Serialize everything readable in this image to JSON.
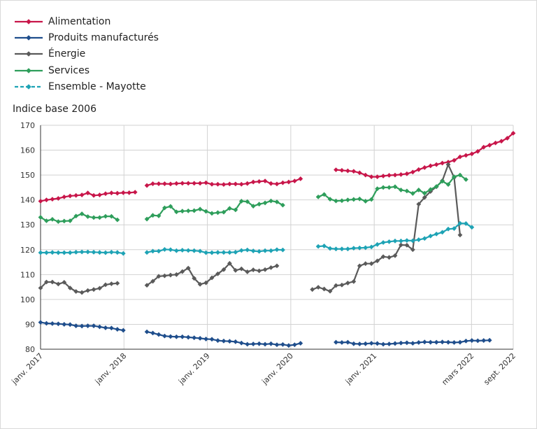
{
  "chart_data": {
    "type": "line",
    "ylabel": "Indice base 2006",
    "ylim": [
      80,
      170
    ],
    "yticks": [
      80,
      90,
      100,
      110,
      120,
      130,
      140,
      150,
      160,
      170
    ],
    "xticks": [
      {
        "label": "janv. 2017",
        "m": 0
      },
      {
        "label": "janv. 2018",
        "m": 12
      },
      {
        "label": "janv. 2019",
        "m": 24
      },
      {
        "label": "janv. 2020",
        "m": 36
      },
      {
        "label": "janv. 2021",
        "m": 48
      },
      {
        "label": "mars 2022",
        "m": 62
      },
      {
        "label": "sept. 2022",
        "m": 68
      }
    ],
    "x_start": "janv. 2017",
    "x_end": "sept. 2022",
    "grid": true,
    "legend_position": "top-left",
    "series": [
      {
        "name": "Alimentation",
        "color": "#c8164a",
        "dashed": false,
        "values": [
          139.5,
          140.0,
          140.3,
          140.6,
          141.2,
          141.6,
          141.8,
          142.0,
          142.8,
          141.8,
          142.0,
          142.5,
          142.8,
          142.7,
          142.9,
          142.9,
          143.1,
          null,
          145.8,
          146.5,
          146.5,
          146.5,
          146.4,
          146.6,
          146.7,
          146.7,
          146.7,
          146.7,
          146.9,
          146.3,
          146.3,
          146.2,
          146.4,
          146.4,
          146.3,
          146.6,
          147.2,
          147.4,
          147.6,
          146.6,
          146.4,
          146.9,
          147.2,
          147.6,
          148.5,
          null,
          null,
          null,
          null,
          null,
          152.1,
          151.9,
          151.7,
          151.5,
          150.9,
          150.0,
          149.3,
          149.3,
          149.6,
          149.9,
          150.0,
          150.2,
          150.5,
          151.2,
          152.2,
          153.0,
          153.7,
          154.2,
          154.8,
          155.2,
          155.9,
          157.3,
          157.9,
          158.5,
          159.5,
          161.2,
          162.0,
          162.9,
          163.6,
          164.8,
          166.8
        ]
      },
      {
        "name": "Produits manufacturés",
        "color": "#1f4e8c",
        "dashed": false,
        "values": [
          90.8,
          90.4,
          90.3,
          90.2,
          90.0,
          89.9,
          89.4,
          89.3,
          89.4,
          89.4,
          89.0,
          88.6,
          88.5,
          88.0,
          87.6,
          null,
          null,
          null,
          87.0,
          86.5,
          85.9,
          85.3,
          85.1,
          85.0,
          85.0,
          84.8,
          84.6,
          84.4,
          84.1,
          84.0,
          83.5,
          83.3,
          83.2,
          83.0,
          82.5,
          82.0,
          82.1,
          82.2,
          82.0,
          82.2,
          81.8,
          81.9,
          81.5,
          81.8,
          82.4,
          null,
          null,
          null,
          null,
          null,
          82.8,
          82.7,
          82.8,
          82.2,
          82.1,
          82.2,
          82.4,
          82.3,
          82.0,
          82.1,
          82.3,
          82.5,
          82.6,
          82.4,
          82.7,
          82.9,
          82.8,
          82.8,
          82.9,
          82.8,
          82.7,
          82.8,
          83.3,
          83.5,
          83.4,
          83.5,
          83.6
        ]
      },
      {
        "name": "Énergie",
        "color": "#5a5a5a",
        "dashed": false,
        "values": [
          104.6,
          107.0,
          107.0,
          106.2,
          106.9,
          104.6,
          103.2,
          102.8,
          103.6,
          104.0,
          104.5,
          105.9,
          106.3,
          106.5,
          null,
          null,
          null,
          null,
          105.7,
          107.3,
          109.3,
          109.5,
          109.8,
          110.0,
          111.2,
          112.6,
          108.5,
          106.1,
          106.7,
          108.7,
          110.3,
          112.0,
          114.5,
          111.7,
          112.3,
          111.1,
          111.9,
          111.5,
          112.0,
          112.8,
          113.5,
          null,
          null,
          null,
          null,
          null,
          104.0,
          104.9,
          104.2,
          103.3,
          105.6,
          105.8,
          106.6,
          107.2,
          113.5,
          114.4,
          114.4,
          115.5,
          117.2,
          116.9,
          117.6,
          121.9,
          121.8,
          120.0,
          138.3,
          141.0,
          143.4,
          145.3,
          147.7,
          154.2,
          149.0,
          125.9
        ]
      },
      {
        "name": "Services",
        "color": "#2e9e5b",
        "dashed": false,
        "values": [
          133.0,
          131.6,
          132.2,
          131.3,
          131.5,
          131.6,
          133.5,
          134.4,
          133.3,
          132.9,
          132.9,
          133.4,
          133.4,
          132.0,
          null,
          null,
          null,
          null,
          132.3,
          133.8,
          133.6,
          136.8,
          137.4,
          135.2,
          135.5,
          135.6,
          135.7,
          136.3,
          135.4,
          134.6,
          134.9,
          135.1,
          136.6,
          136.0,
          139.5,
          139.3,
          137.5,
          138.3,
          138.8,
          139.6,
          139.2,
          137.9,
          null,
          null,
          null,
          null,
          null,
          141.2,
          142.2,
          140.3,
          139.6,
          139.7,
          140.0,
          140.2,
          140.4,
          139.5,
          140.2,
          144.5,
          145.0,
          145.0,
          145.3,
          144.0,
          143.6,
          142.6,
          144.0,
          142.7,
          144.2,
          145.4,
          147.5,
          146.2,
          149.3,
          150.0,
          148.2
        ]
      },
      {
        "name": "Ensemble - Mayotte",
        "color": "#1ea3b5",
        "dashed": true,
        "values": [
          118.8,
          118.8,
          118.9,
          118.8,
          118.8,
          118.8,
          119.0,
          119.1,
          119.1,
          119.0,
          118.9,
          118.8,
          119.0,
          118.9,
          118.5,
          null,
          null,
          null,
          118.9,
          119.4,
          119.4,
          120.1,
          120.0,
          119.6,
          119.8,
          119.7,
          119.6,
          119.4,
          118.8,
          118.8,
          118.9,
          118.9,
          118.9,
          119.0,
          119.7,
          119.9,
          119.5,
          119.3,
          119.6,
          119.6,
          120.0,
          119.9,
          null,
          null,
          null,
          null,
          null,
          121.3,
          121.5,
          120.5,
          120.3,
          120.3,
          120.3,
          120.6,
          120.7,
          120.8,
          121.1,
          122.1,
          122.9,
          123.2,
          123.5,
          123.5,
          123.7,
          123.6,
          124.0,
          124.5,
          125.5,
          126.3,
          127.0,
          128.3,
          128.5,
          130.6,
          130.5,
          129.0
        ]
      }
    ]
  }
}
